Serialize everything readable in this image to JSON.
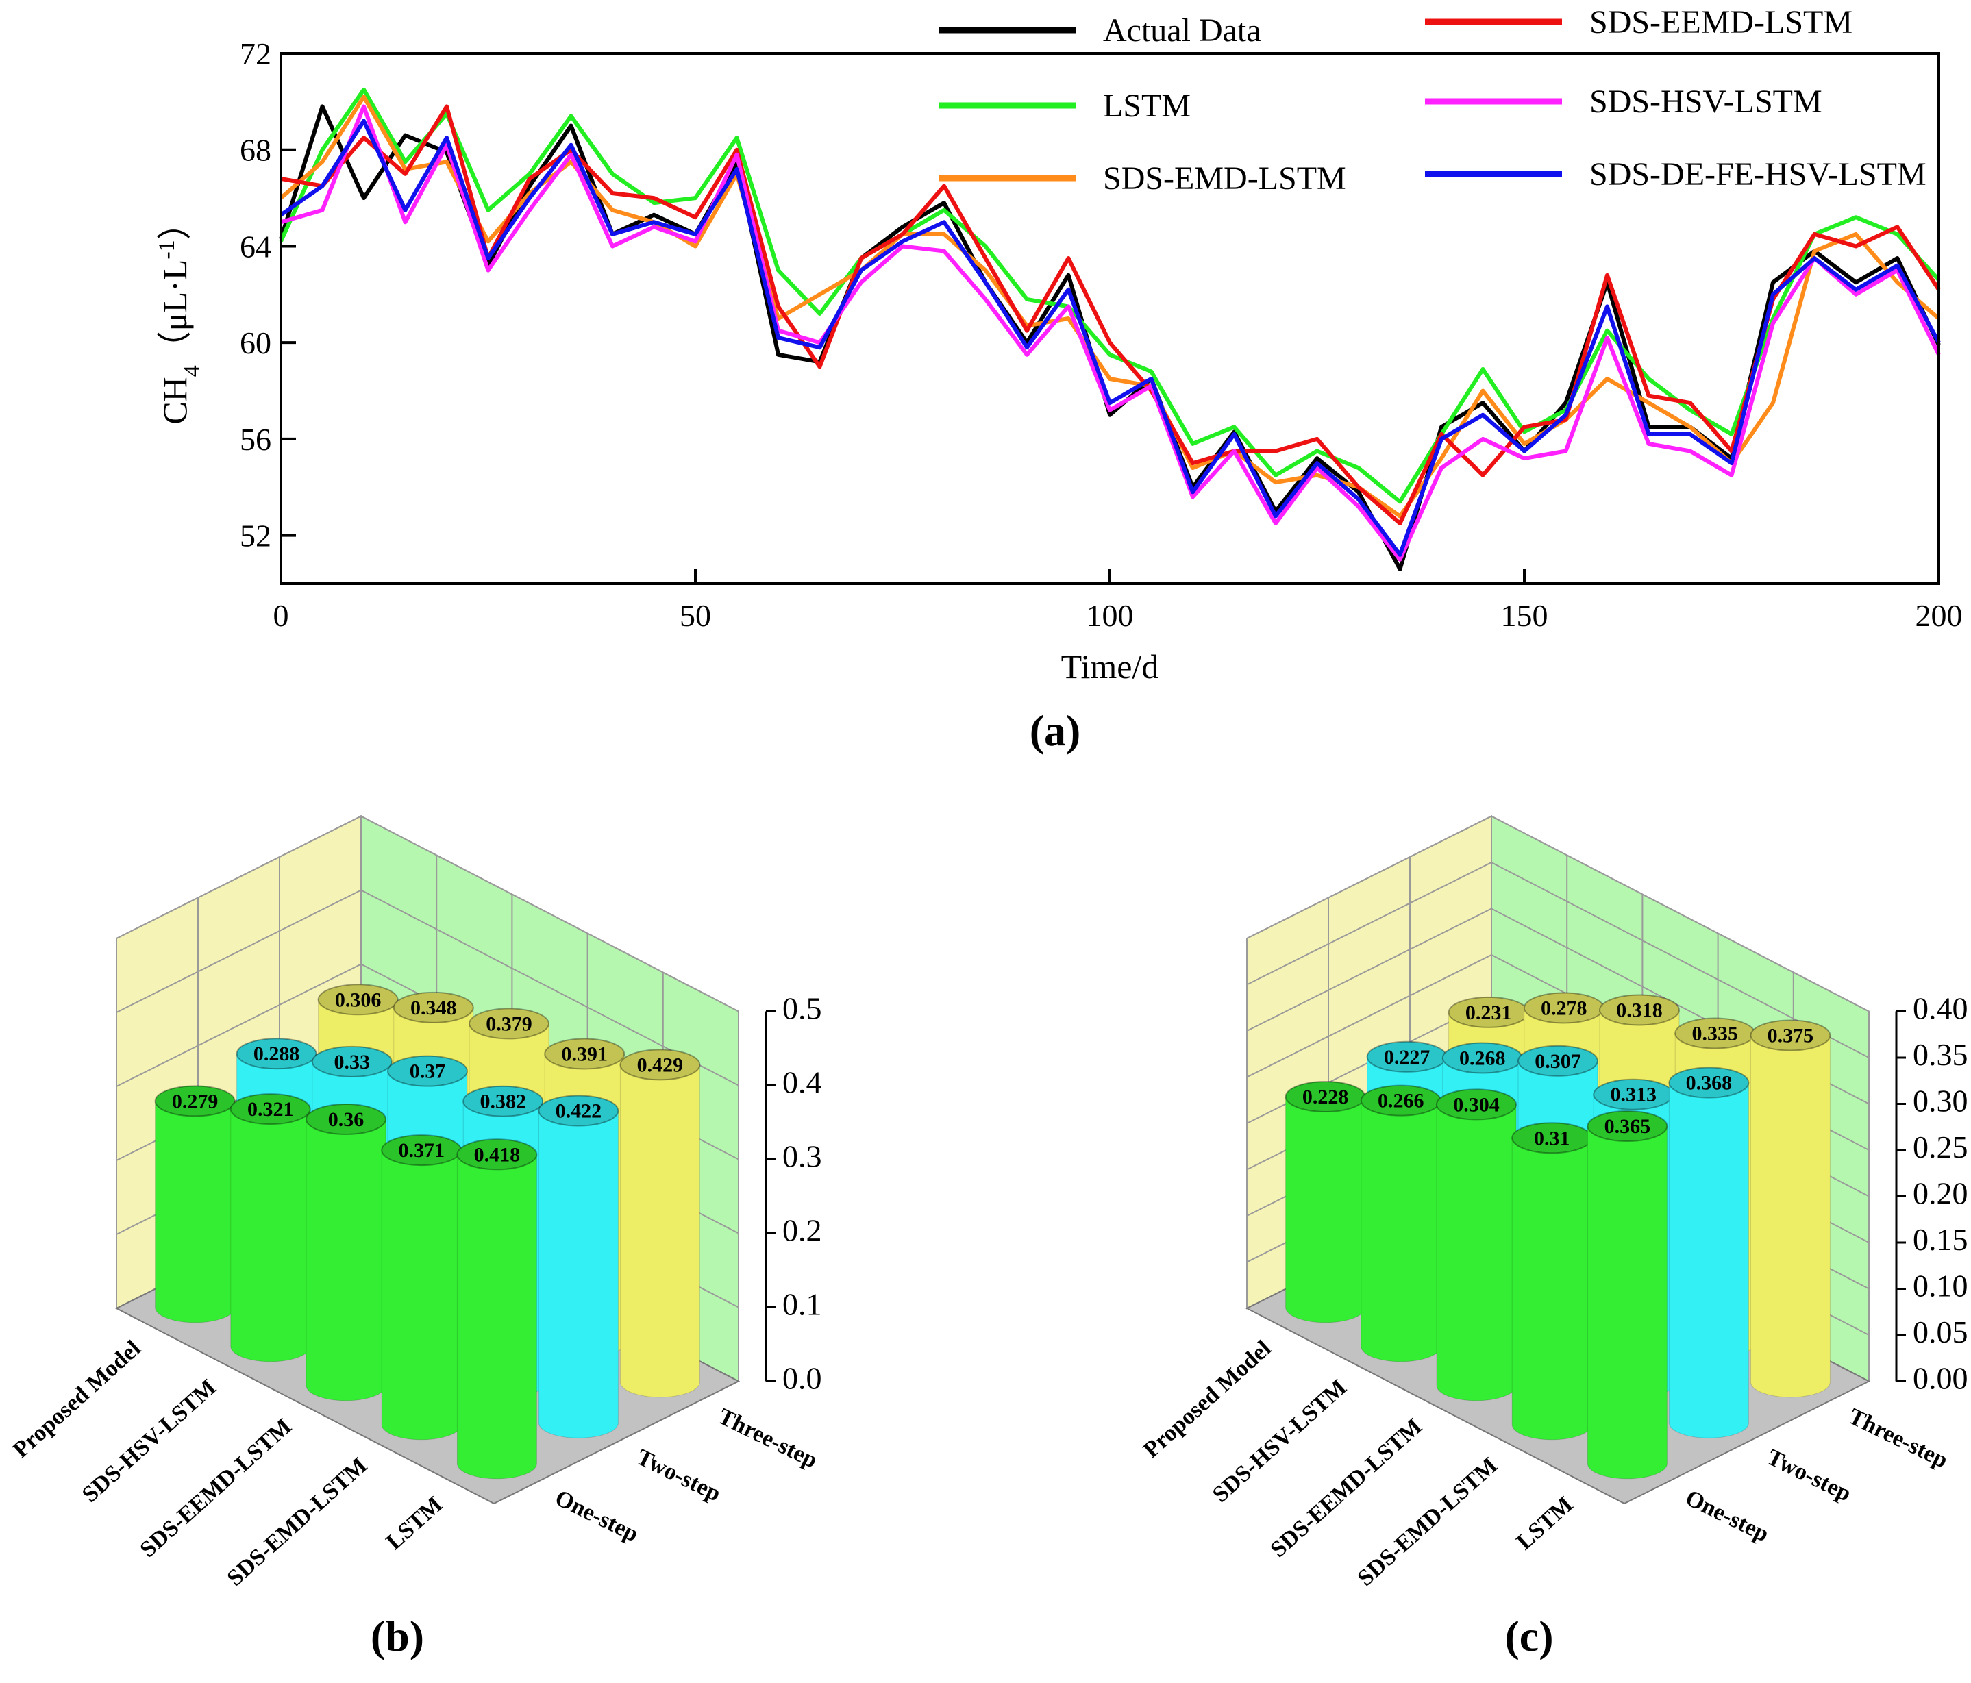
{
  "line_panel": {
    "panel_label": "(a)",
    "xlabel": "Time/d",
    "ylabel_base": "CH",
    "ylabel_sub": "4",
    "ylabel_unit": "（μL·L",
    "ylabel_sup": "-1",
    "ylabel_close": "）"
  },
  "bar_panels": [
    {
      "panel_label": "(b)"
    },
    {
      "panel_label": "(c)"
    }
  ],
  "colors": {
    "Actual Data": "#000000",
    "LSTM": "#22ee22",
    "SDS-EMD-LSTM": "#ff8c1a",
    "SDS-EEMD-LSTM": "#ee1111",
    "SDS-HSV-LSTM": "#ff22ff",
    "SDS-DE-FE-HSV-LSTM": "#1111ee",
    "one_step": "#33ee33",
    "two_step": "#33f0f5",
    "three_step": "#eeee66"
  },
  "chart_data": [
    {
      "type": "line",
      "title": "",
      "xlabel": "Time/d",
      "ylabel": "CH4（μL·L-1）",
      "xlim": [
        0,
        200
      ],
      "ylim": [
        50,
        72
      ],
      "xticks": [
        0,
        50,
        100,
        150,
        200
      ],
      "yticks": [
        52,
        56,
        60,
        64,
        68,
        72
      ],
      "grid": false,
      "legend_position": "top",
      "x": [
        0,
        5,
        10,
        15,
        20,
        25,
        30,
        35,
        40,
        45,
        50,
        55,
        60,
        65,
        70,
        75,
        80,
        85,
        90,
        95,
        100,
        105,
        110,
        115,
        120,
        125,
        130,
        135,
        140,
        145,
        150,
        155,
        160,
        165,
        170,
        175,
        180,
        185,
        190,
        195,
        200
      ],
      "series": [
        {
          "name": "Actual Data",
          "values": [
            64.3,
            69.8,
            66.0,
            68.6,
            67.9,
            63.2,
            66.5,
            69.0,
            64.5,
            65.3,
            64.5,
            67.5,
            59.5,
            59.2,
            63.5,
            64.8,
            65.8,
            62.5,
            60.0,
            62.8,
            57.0,
            58.5,
            54.0,
            56.3,
            53.0,
            55.2,
            53.8,
            50.6,
            56.5,
            57.5,
            55.5,
            57.5,
            62.5,
            56.5,
            56.5,
            55.2,
            62.5,
            63.8,
            62.5,
            63.5,
            59.9
          ]
        },
        {
          "name": "LSTM",
          "values": [
            64.2,
            68.0,
            70.5,
            67.5,
            69.5,
            65.5,
            67.0,
            69.4,
            67.0,
            65.8,
            66.0,
            68.5,
            63.0,
            61.2,
            63.5,
            64.5,
            65.5,
            64.0,
            61.8,
            61.5,
            59.5,
            58.8,
            55.8,
            56.5,
            54.5,
            55.5,
            54.8,
            53.4,
            56.2,
            58.9,
            56.3,
            57.2,
            60.5,
            58.5,
            57.2,
            56.2,
            61.0,
            64.5,
            65.2,
            64.5,
            62.6
          ]
        },
        {
          "name": "SDS-EMD-LSTM",
          "values": [
            66.0,
            67.5,
            70.2,
            67.2,
            67.5,
            64.2,
            66.2,
            67.5,
            65.5,
            65.0,
            64.0,
            67.0,
            61.0,
            62.0,
            63.0,
            64.5,
            64.5,
            63.0,
            60.7,
            61.0,
            58.5,
            58.2,
            54.8,
            55.5,
            54.2,
            54.5,
            54.0,
            52.8,
            55.2,
            58.0,
            55.8,
            56.8,
            58.5,
            57.5,
            56.5,
            55.0,
            57.5,
            63.8,
            64.5,
            62.5,
            61.0
          ]
        },
        {
          "name": "SDS-EEMD-LSTM",
          "values": [
            66.8,
            66.5,
            68.5,
            67.0,
            69.8,
            63.5,
            66.8,
            68.0,
            66.2,
            66.0,
            65.2,
            68.0,
            61.5,
            59.0,
            63.5,
            64.5,
            66.5,
            63.5,
            60.5,
            63.5,
            60.0,
            58.0,
            55.0,
            55.5,
            55.5,
            56.0,
            54.0,
            52.5,
            56.2,
            54.5,
            56.5,
            56.8,
            62.8,
            57.8,
            57.5,
            55.5,
            61.8,
            64.5,
            64.0,
            64.8,
            62.2
          ]
        },
        {
          "name": "SDS-HSV-LSTM",
          "values": [
            65.0,
            65.5,
            69.8,
            65.0,
            68.2,
            63.0,
            65.5,
            67.8,
            64.0,
            64.8,
            64.2,
            67.8,
            60.5,
            60.0,
            62.5,
            64.0,
            63.8,
            61.8,
            59.5,
            61.5,
            57.2,
            58.2,
            53.6,
            55.5,
            52.5,
            54.8,
            53.2,
            51.0,
            54.8,
            56.0,
            55.2,
            55.5,
            60.2,
            55.8,
            55.5,
            54.5,
            60.8,
            63.5,
            62.0,
            63.0,
            59.5
          ]
        },
        {
          "name": "SDS-DE-FE-HSV-LSTM",
          "values": [
            65.3,
            66.5,
            69.2,
            65.5,
            68.5,
            63.5,
            66.0,
            68.2,
            64.5,
            65.0,
            64.5,
            67.2,
            60.2,
            59.8,
            63.0,
            64.2,
            65.0,
            62.5,
            59.8,
            62.2,
            57.5,
            58.5,
            53.8,
            56.2,
            52.8,
            55.0,
            53.5,
            51.2,
            56.0,
            57.0,
            55.5,
            57.0,
            61.5,
            56.2,
            56.2,
            55.0,
            62.0,
            63.5,
            62.2,
            63.2,
            60.0
          ]
        }
      ]
    },
    {
      "type": "bar",
      "subtype": "3d-cylinder",
      "title": "",
      "categories": [
        "Proposed Model",
        "SDS-HSV-LSTM",
        "SDS-EEMD-LSTM",
        "SDS-EMD-LSTM",
        "LSTM"
      ],
      "depth_categories": [
        "One-step",
        "Two-step",
        "Three-step"
      ],
      "zlim": [
        0.0,
        0.5
      ],
      "zticks": [
        "0.0",
        "0.1",
        "0.2",
        "0.3",
        "0.4",
        "0.5"
      ],
      "series": [
        {
          "name": "One-step",
          "values": [
            "0.279",
            "0.321",
            "0.36",
            "0.371",
            "0.418"
          ]
        },
        {
          "name": "Two-step",
          "values": [
            "0.288",
            "0.33",
            "0.37",
            "0.382",
            "0.422"
          ]
        },
        {
          "name": "Three-step",
          "values": [
            "0.306",
            "0.348",
            "0.379",
            "0.391",
            "0.429"
          ]
        }
      ]
    },
    {
      "type": "bar",
      "subtype": "3d-cylinder",
      "title": "",
      "categories": [
        "Proposed Model",
        "SDS-HSV-LSTM",
        "SDS-EEMD-LSTM",
        "SDS-EMD-LSTM",
        "LSTM"
      ],
      "depth_categories": [
        "One-step",
        "Two-step",
        "Three-step"
      ],
      "zlim": [
        0.0,
        0.4
      ],
      "zticks": [
        "0.00",
        "0.05",
        "0.10",
        "0.15",
        "0.20",
        "0.25",
        "0.30",
        "0.35",
        "0.40"
      ],
      "series": [
        {
          "name": "One-step",
          "values": [
            "0.228",
            "0.266",
            "0.304",
            "0.31",
            "0.365"
          ]
        },
        {
          "name": "Two-step",
          "values": [
            "0.227",
            "0.268",
            "0.307",
            "0.313",
            "0.368"
          ]
        },
        {
          "name": "Three-step",
          "values": [
            "0.231",
            "0.278",
            "0.318",
            "0.335",
            "0.375"
          ]
        }
      ]
    }
  ]
}
